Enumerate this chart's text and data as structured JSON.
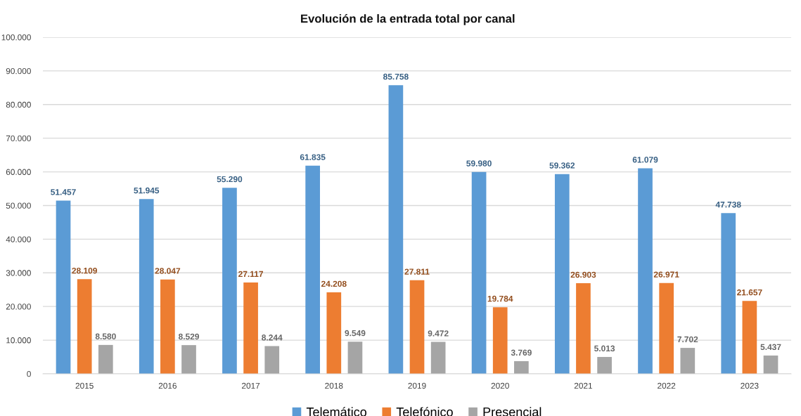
{
  "chart_data": {
    "type": "bar",
    "title": "Evolución de la entrada total por canal",
    "categories": [
      "2015",
      "2016",
      "2017",
      "2018",
      "2019",
      "2020",
      "2021",
      "2022",
      "2023"
    ],
    "series": [
      {
        "name": "Telemático",
        "color": "#5b9bd5",
        "values": [
          51457,
          51945,
          55290,
          61835,
          85758,
          59980,
          59362,
          61079,
          47738
        ],
        "value_labels": [
          "51.457",
          "51.945",
          "55.290",
          "61.835",
          "85.758",
          "59.980",
          "59.362",
          "61.079",
          "47.738"
        ]
      },
      {
        "name": "Telefónico",
        "color": "#ed7d31",
        "values": [
          28109,
          28047,
          27117,
          24208,
          27811,
          19784,
          26903,
          26971,
          21657
        ],
        "value_labels": [
          "28.109",
          "28.047",
          "27.117",
          "24.208",
          "27.811",
          "19.784",
          "26.903",
          "26.971",
          "21.657"
        ]
      },
      {
        "name": "Presencial",
        "color": "#a5a5a5",
        "values": [
          8580,
          8529,
          8244,
          9549,
          9472,
          3769,
          5013,
          7702,
          5437
        ],
        "value_labels": [
          "8.580",
          "8.529",
          "8.244",
          "9.549",
          "9.472",
          "3.769",
          "5.013",
          "7.702",
          "5.437"
        ]
      }
    ],
    "ylim": [
      0,
      100000
    ],
    "yticks": [
      0,
      {
        "value": 10000,
        "label": "10.000"
      },
      {
        "value": 20000,
        "label": "20.000"
      },
      {
        "value": 30000,
        "label": "30.000"
      },
      {
        "value": 40000,
        "label": "40.000"
      },
      {
        "value": 50000,
        "label": "50.000"
      },
      {
        "value": 60000,
        "label": "60.000"
      },
      {
        "value": 70000,
        "label": "70.000"
      },
      {
        "value": 80000,
        "label": "80.000"
      },
      {
        "value": 90000,
        "label": "90.000"
      },
      {
        "value": 100000,
        "label": "100.000"
      }
    ],
    "grid": "y",
    "legend": "bottom"
  }
}
